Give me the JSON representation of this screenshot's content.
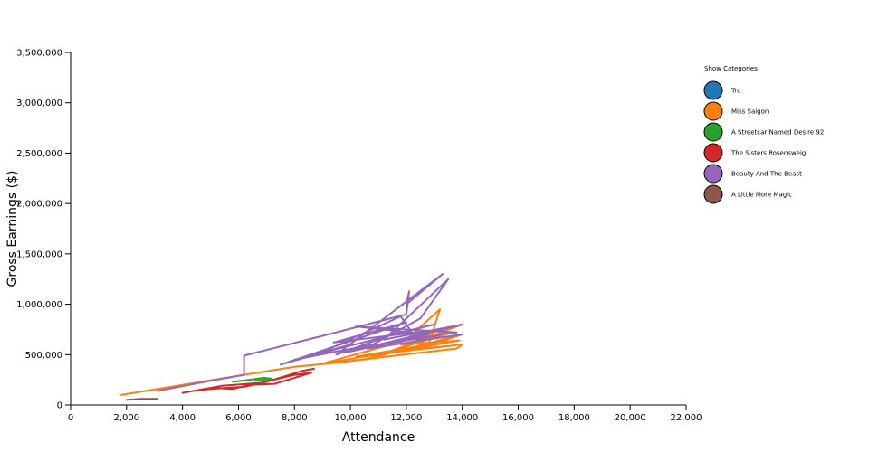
{
  "chart_data": {
    "type": "line",
    "xlabel": "Attendance",
    "ylabel": "Gross Earnings ($)",
    "xlim": [
      0,
      22000
    ],
    "ylim": [
      0,
      3500000
    ],
    "x_ticks": [
      0,
      2000,
      4000,
      6000,
      8000,
      10000,
      12000,
      14000,
      16000,
      18000,
      20000,
      22000
    ],
    "x_tick_labels": [
      "0",
      "2,000",
      "4,000",
      "6,000",
      "8,000",
      "10,000",
      "12,000",
      "14,000",
      "16,000",
      "18,000",
      "20,000",
      "22,000"
    ],
    "y_ticks": [
      0,
      500000,
      1000000,
      1500000,
      2000000,
      2500000,
      3000000,
      3500000
    ],
    "y_tick_labels": [
      "0",
      "500,000",
      "1,000,000",
      "1,500,000",
      "2,000,000",
      "2,500,000",
      "3,000,000",
      "3,500,000"
    ],
    "grid": false,
    "legend": {
      "title": "Show Categories",
      "placement": "top-right"
    },
    "series": [
      {
        "name": "Tru",
        "color": "#1f77b4",
        "points": []
      },
      {
        "name": "Miss Saigon",
        "color": "#ff7f0e",
        "points": [
          [
            1800,
            100000
          ],
          [
            6200,
            300000
          ],
          [
            8000,
            380000
          ],
          [
            9500,
            420000
          ],
          [
            11000,
            470000
          ],
          [
            12500,
            520000
          ],
          [
            13800,
            560000
          ],
          [
            14000,
            600000
          ],
          [
            10200,
            480000
          ],
          [
            12800,
            600000
          ],
          [
            13200,
            950000
          ],
          [
            12000,
            650000
          ],
          [
            13600,
            720000
          ],
          [
            11500,
            540000
          ],
          [
            14000,
            800000
          ],
          [
            9000,
            410000
          ],
          [
            13900,
            640000
          ],
          [
            11800,
            600000
          ],
          [
            13000,
            680000
          ],
          [
            10500,
            450000
          ],
          [
            14000,
            700000
          ],
          [
            12400,
            560000
          ],
          [
            13700,
            590000
          ]
        ]
      },
      {
        "name": "A Streetcar Named Desire 92",
        "color": "#2ca02c",
        "points": [
          [
            5800,
            230000
          ],
          [
            6400,
            250000
          ],
          [
            6900,
            270000
          ],
          [
            7200,
            260000
          ],
          [
            6600,
            240000
          ]
        ]
      },
      {
        "name": "The Sisters Rosensweig",
        "color": "#d62728",
        "points": [
          [
            4000,
            120000
          ],
          [
            4600,
            150000
          ],
          [
            5200,
            170000
          ],
          [
            5800,
            160000
          ],
          [
            6400,
            200000
          ],
          [
            7300,
            210000
          ],
          [
            8600,
            320000
          ],
          [
            8000,
            300000
          ],
          [
            6800,
            220000
          ],
          [
            5400,
            190000
          ],
          [
            4400,
            140000
          ],
          [
            5000,
            160000
          ],
          [
            6200,
            180000
          ],
          [
            7000,
            230000
          ],
          [
            8300,
            340000
          ],
          [
            8700,
            360000
          ]
        ]
      },
      {
        "name": "Beauty And The Beast",
        "color": "#9467bd",
        "points": [
          [
            3100,
            140000
          ],
          [
            5000,
            240000
          ],
          [
            6200,
            300000
          ],
          [
            6200,
            490000
          ],
          [
            9200,
            700000
          ],
          [
            12000,
            900000
          ],
          [
            12100,
            1130000
          ],
          [
            12000,
            1000000
          ],
          [
            13300,
            1300000
          ],
          [
            9500,
            500000
          ],
          [
            11500,
            700000
          ],
          [
            13000,
            800000
          ],
          [
            8000,
            450000
          ],
          [
            10800,
            600000
          ],
          [
            12500,
            860000
          ],
          [
            13500,
            1250000
          ],
          [
            11200,
            650000
          ],
          [
            14000,
            800000
          ],
          [
            9800,
            520000
          ],
          [
            12800,
            700000
          ],
          [
            10200,
            780000
          ],
          [
            13800,
            720000
          ],
          [
            8800,
            500000
          ],
          [
            11800,
            880000
          ],
          [
            12400,
            640000
          ],
          [
            14000,
            700000
          ],
          [
            10600,
            560000
          ],
          [
            13200,
            750000
          ],
          [
            9400,
            620000
          ],
          [
            12000,
            820000
          ],
          [
            7500,
            400000
          ],
          [
            10000,
            600000
          ]
        ]
      },
      {
        "name": "A Little More Magic",
        "color": "#8c564b",
        "points": [
          [
            2000,
            50000
          ],
          [
            2500,
            60000
          ],
          [
            3100,
            60000
          ]
        ]
      }
    ]
  }
}
